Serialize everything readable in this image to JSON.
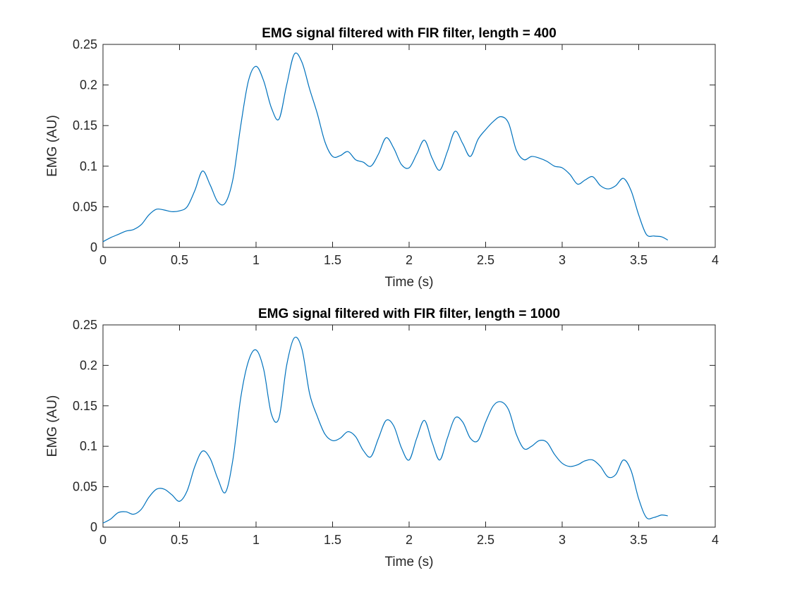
{
  "chart_data": [
    {
      "type": "line",
      "title": "EMG signal filtered with FIR filter, length = 400",
      "xlabel": "Time (s)",
      "ylabel": "EMG (AU)",
      "xlim": [
        0,
        4
      ],
      "ylim": [
        0,
        0.25
      ],
      "xticks": [
        0,
        0.5,
        1,
        1.5,
        2,
        2.5,
        3,
        3.5,
        4
      ],
      "xtick_labels": [
        "0",
        "0.5",
        "1",
        "1.5",
        "2",
        "2.5",
        "3",
        "3.5",
        "4"
      ],
      "yticks": [
        0,
        0.05,
        0.1,
        0.15,
        0.2,
        0.25
      ],
      "ytick_labels": [
        "0",
        "0.05",
        "0.1",
        "0.15",
        "0.2",
        "0.25"
      ],
      "grid": false,
      "color": "#0072BD",
      "series": [
        {
          "x": [
            0,
            0.05,
            0.1,
            0.15,
            0.2,
            0.25,
            0.3,
            0.35,
            0.4,
            0.45,
            0.5,
            0.55,
            0.6,
            0.65,
            0.7,
            0.75,
            0.8,
            0.85,
            0.9,
            0.95,
            1.0,
            1.05,
            1.1,
            1.15,
            1.2,
            1.25,
            1.3,
            1.35,
            1.4,
            1.45,
            1.5,
            1.55,
            1.6,
            1.65,
            1.7,
            1.75,
            1.8,
            1.85,
            1.9,
            1.95,
            2.0,
            2.05,
            2.1,
            2.15,
            2.2,
            2.25,
            2.3,
            2.35,
            2.4,
            2.45,
            2.5,
            2.55,
            2.6,
            2.65,
            2.7,
            2.75,
            2.8,
            2.85,
            2.9,
            2.95,
            3.0,
            3.05,
            3.1,
            3.15,
            3.2,
            3.25,
            3.3,
            3.35,
            3.4,
            3.45,
            3.5,
            3.55,
            3.6,
            3.65,
            3.69
          ],
          "y": [
            0.007,
            0.012,
            0.016,
            0.02,
            0.022,
            0.028,
            0.04,
            0.047,
            0.046,
            0.044,
            0.045,
            0.05,
            0.07,
            0.094,
            0.077,
            0.056,
            0.055,
            0.085,
            0.15,
            0.205,
            0.223,
            0.205,
            0.172,
            0.158,
            0.2,
            0.238,
            0.228,
            0.195,
            0.165,
            0.13,
            0.112,
            0.113,
            0.118,
            0.108,
            0.105,
            0.1,
            0.115,
            0.135,
            0.122,
            0.102,
            0.098,
            0.115,
            0.132,
            0.11,
            0.095,
            0.118,
            0.143,
            0.128,
            0.112,
            0.133,
            0.145,
            0.155,
            0.161,
            0.153,
            0.12,
            0.108,
            0.112,
            0.11,
            0.106,
            0.1,
            0.098,
            0.09,
            0.078,
            0.083,
            0.087,
            0.076,
            0.072,
            0.076,
            0.085,
            0.07,
            0.04,
            0.016,
            0.014,
            0.013,
            0.009
          ]
        }
      ]
    },
    {
      "type": "line",
      "title": "EMG signal filtered with FIR filter, length = 1000",
      "xlabel": "Time (s)",
      "ylabel": "EMG (AU)",
      "xlim": [
        0,
        4
      ],
      "ylim": [
        0,
        0.25
      ],
      "xticks": [
        0,
        0.5,
        1,
        1.5,
        2,
        2.5,
        3,
        3.5,
        4
      ],
      "xtick_labels": [
        "0",
        "0.5",
        "1",
        "1.5",
        "2",
        "2.5",
        "3",
        "3.5",
        "4"
      ],
      "yticks": [
        0,
        0.05,
        0.1,
        0.15,
        0.2,
        0.25
      ],
      "ytick_labels": [
        "0",
        "0.05",
        "0.1",
        "0.15",
        "0.2",
        "0.25"
      ],
      "grid": false,
      "color": "#0072BD",
      "series": [
        {
          "x": [
            0,
            0.05,
            0.1,
            0.15,
            0.2,
            0.25,
            0.3,
            0.35,
            0.4,
            0.45,
            0.5,
            0.55,
            0.6,
            0.65,
            0.7,
            0.75,
            0.8,
            0.85,
            0.9,
            0.95,
            1.0,
            1.05,
            1.1,
            1.15,
            1.2,
            1.25,
            1.3,
            1.35,
            1.4,
            1.45,
            1.5,
            1.55,
            1.6,
            1.65,
            1.7,
            1.75,
            1.8,
            1.85,
            1.9,
            1.95,
            2.0,
            2.05,
            2.1,
            2.15,
            2.2,
            2.25,
            2.3,
            2.35,
            2.4,
            2.45,
            2.5,
            2.55,
            2.6,
            2.65,
            2.7,
            2.75,
            2.8,
            2.85,
            2.9,
            2.95,
            3.0,
            3.05,
            3.1,
            3.15,
            3.2,
            3.25,
            3.3,
            3.35,
            3.4,
            3.45,
            3.5,
            3.55,
            3.6,
            3.65,
            3.69
          ],
          "y": [
            0.005,
            0.01,
            0.018,
            0.019,
            0.016,
            0.022,
            0.037,
            0.047,
            0.047,
            0.04,
            0.032,
            0.045,
            0.075,
            0.094,
            0.085,
            0.06,
            0.043,
            0.085,
            0.16,
            0.205,
            0.219,
            0.195,
            0.14,
            0.135,
            0.2,
            0.234,
            0.22,
            0.165,
            0.137,
            0.115,
            0.107,
            0.11,
            0.118,
            0.112,
            0.095,
            0.087,
            0.11,
            0.132,
            0.125,
            0.098,
            0.083,
            0.11,
            0.132,
            0.105,
            0.083,
            0.11,
            0.135,
            0.13,
            0.11,
            0.107,
            0.13,
            0.15,
            0.155,
            0.145,
            0.115,
            0.097,
            0.1,
            0.107,
            0.105,
            0.09,
            0.079,
            0.075,
            0.077,
            0.082,
            0.083,
            0.075,
            0.062,
            0.065,
            0.083,
            0.07,
            0.035,
            0.012,
            0.012,
            0.015,
            0.014
          ]
        }
      ]
    }
  ]
}
